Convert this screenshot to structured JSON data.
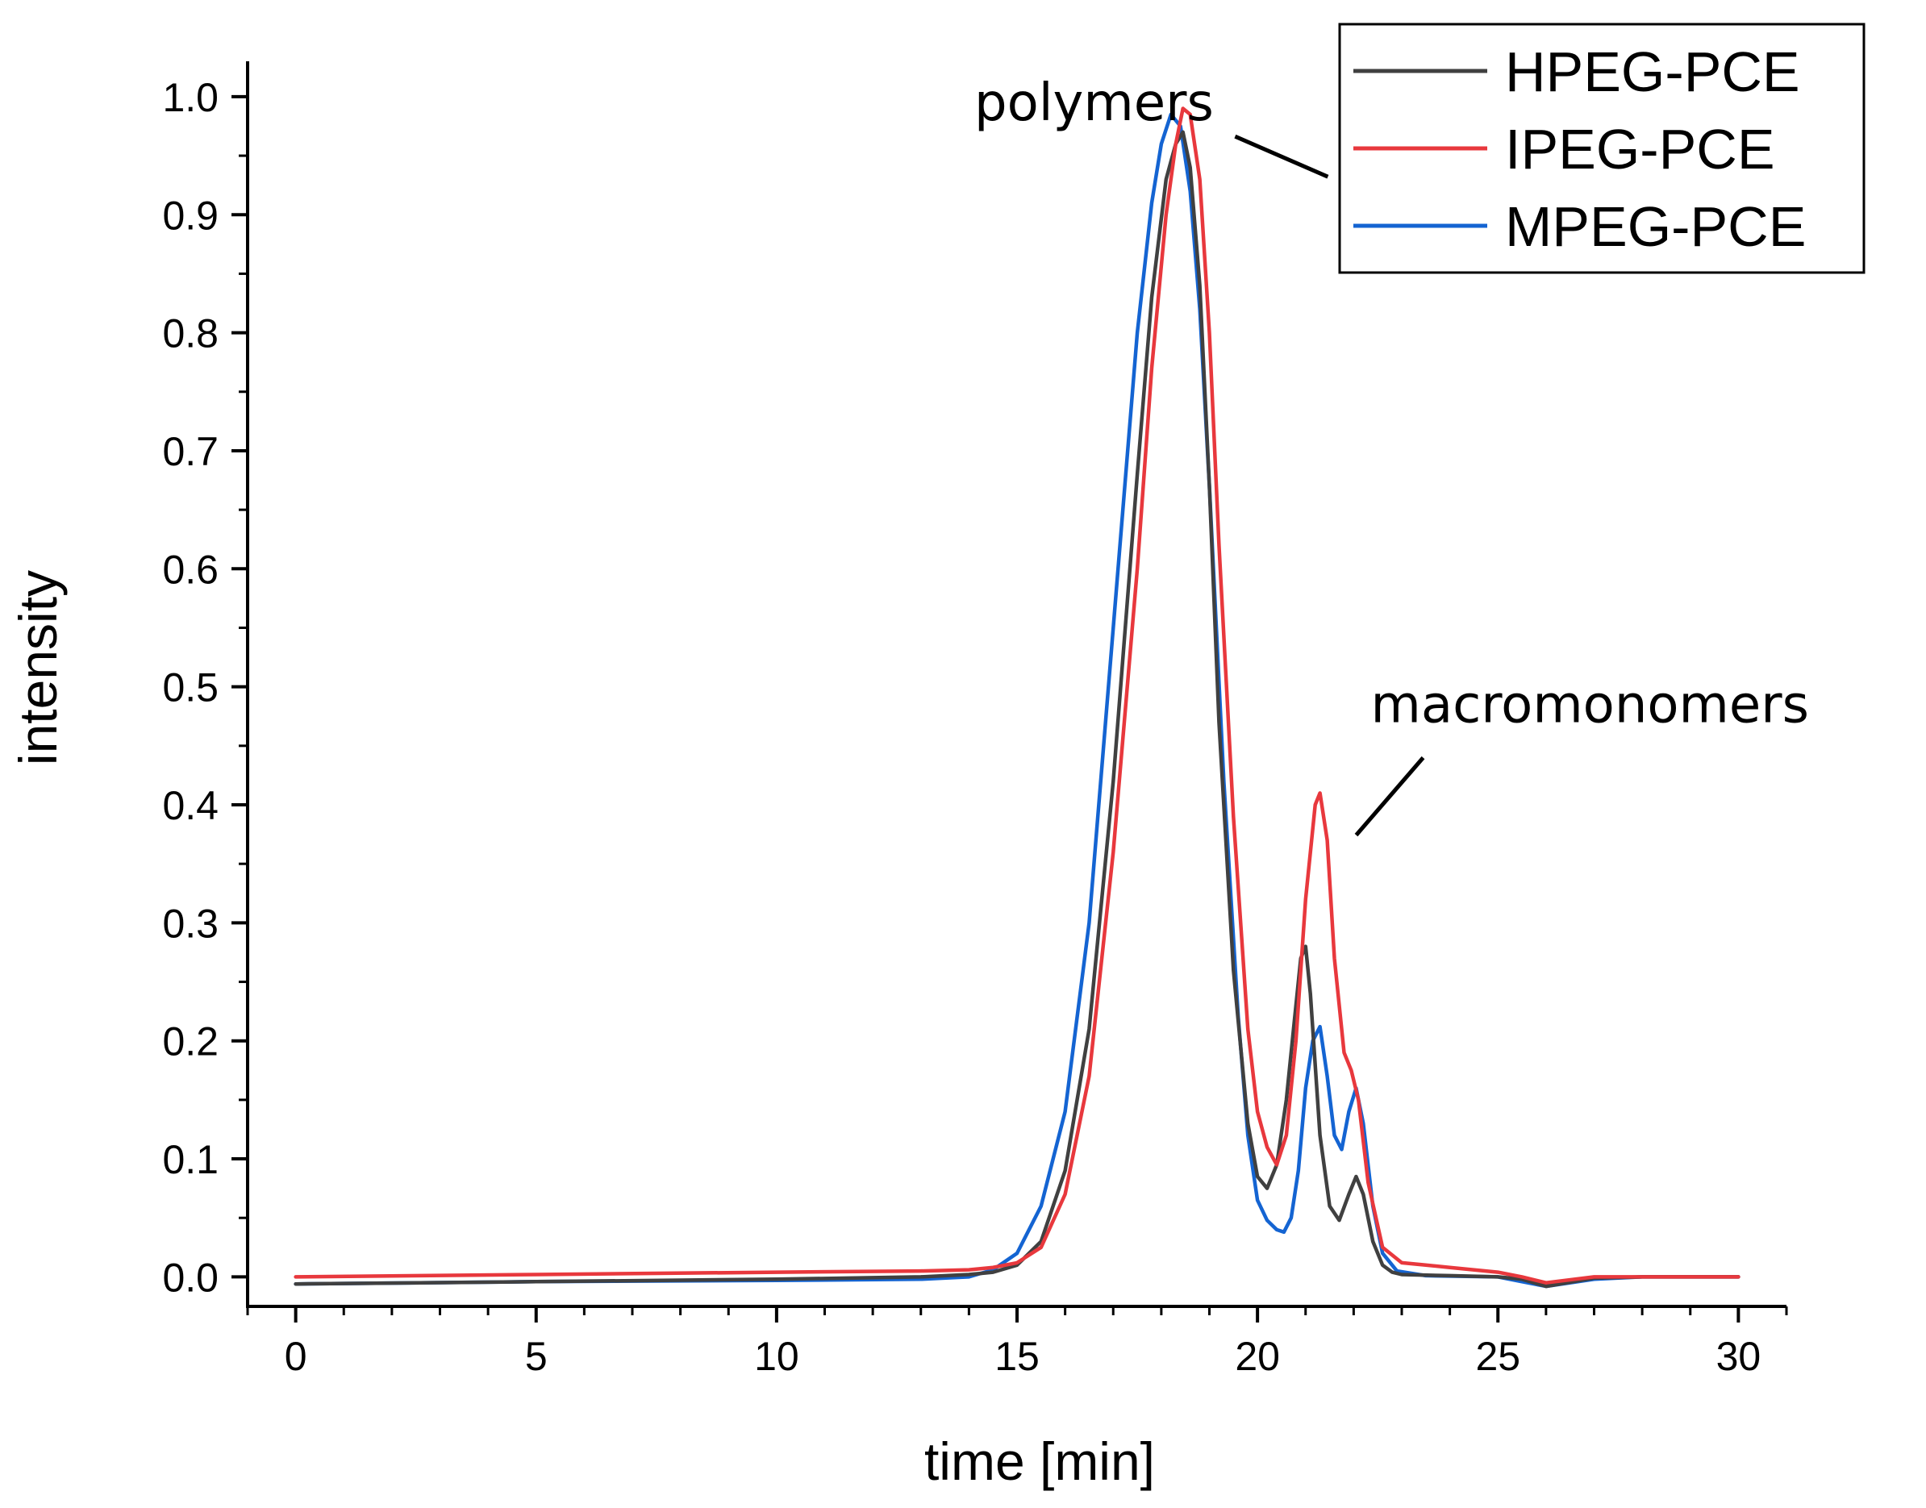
{
  "chart_data": {
    "type": "line",
    "title": "",
    "xlabel": "time [min]",
    "ylabel": "intensity",
    "xlim": [
      -1,
      31
    ],
    "ylim": [
      -0.025,
      1.03
    ],
    "xticks": [
      0,
      5,
      10,
      15,
      20,
      25,
      30
    ],
    "xtick_labels": [
      "0",
      "5",
      "10",
      "15",
      "20",
      "25",
      "30"
    ],
    "yticks": [
      0.0,
      0.1,
      0.2,
      0.3,
      0.4,
      0.5,
      0.6,
      0.7,
      0.8,
      0.9,
      1.0
    ],
    "ytick_labels": [
      "0.0",
      "0.1",
      "0.2",
      "0.3",
      "0.4",
      "0.5",
      "0.6",
      "0.7",
      "0.8",
      "0.9",
      "1.0"
    ],
    "grid": false,
    "legend_position": "top-right",
    "annotations": [
      {
        "text": "polymers",
        "x": 16.6,
        "y": 0.98
      },
      {
        "text": "macromonomers",
        "x": 21.6,
        "y": 0.47
      }
    ],
    "series": [
      {
        "name": "HPEG-PCE",
        "color": "#404040",
        "x": [
          0,
          5,
          10,
          13,
          14,
          14.5,
          15,
          15.5,
          16,
          16.5,
          17,
          17.5,
          17.8,
          18.1,
          18.3,
          18.45,
          18.6,
          18.8,
          19,
          19.2,
          19.5,
          19.8,
          20,
          20.2,
          20.4,
          20.6,
          20.8,
          20.9,
          21.0,
          21.1,
          21.3,
          21.5,
          21.7,
          21.9,
          22.05,
          22.2,
          22.4,
          22.6,
          22.8,
          23,
          24,
          25,
          25.5,
          26,
          27,
          28,
          30
        ],
        "y": [
          -0.006,
          -0.004,
          -0.002,
          0.0,
          0.002,
          0.004,
          0.01,
          0.03,
          0.09,
          0.21,
          0.42,
          0.68,
          0.83,
          0.93,
          0.96,
          0.97,
          0.94,
          0.84,
          0.67,
          0.47,
          0.26,
          0.13,
          0.085,
          0.075,
          0.095,
          0.15,
          0.23,
          0.27,
          0.28,
          0.24,
          0.12,
          0.06,
          0.048,
          0.07,
          0.085,
          0.07,
          0.03,
          0.01,
          0.004,
          0.002,
          0.001,
          0.0,
          -0.002,
          -0.008,
          -0.001,
          0.0,
          0.0
        ]
      },
      {
        "name": "IPEG-PCE",
        "color": "#e8383d",
        "x": [
          0,
          5,
          10,
          13,
          14,
          14.5,
          15,
          15.5,
          16,
          16.5,
          17,
          17.5,
          17.8,
          18.1,
          18.3,
          18.45,
          18.6,
          18.8,
          19,
          19.2,
          19.5,
          19.8,
          20,
          20.2,
          20.4,
          20.6,
          20.8,
          21.0,
          21.2,
          21.3,
          21.45,
          21.6,
          21.8,
          21.95,
          22.1,
          22.3,
          22.6,
          23,
          23.5,
          24,
          25,
          25.5,
          26,
          27,
          28,
          30
        ],
        "y": [
          0.0,
          0.002,
          0.004,
          0.005,
          0.006,
          0.008,
          0.012,
          0.025,
          0.07,
          0.17,
          0.36,
          0.6,
          0.77,
          0.9,
          0.96,
          0.99,
          0.985,
          0.93,
          0.8,
          0.62,
          0.39,
          0.21,
          0.14,
          0.11,
          0.095,
          0.12,
          0.2,
          0.32,
          0.4,
          0.41,
          0.37,
          0.27,
          0.19,
          0.175,
          0.15,
          0.08,
          0.025,
          0.012,
          0.01,
          0.008,
          0.004,
          0.0,
          -0.005,
          0.0,
          0.0,
          0.0
        ]
      },
      {
        "name": "MPEG-PCE",
        "color": "#1464d2",
        "x": [
          0,
          5,
          10,
          13,
          14,
          14.5,
          15,
          15.5,
          16,
          16.5,
          17,
          17.5,
          17.8,
          18.0,
          18.2,
          18.4,
          18.6,
          18.8,
          19,
          19.3,
          19.6,
          19.8,
          20,
          20.2,
          20.4,
          20.55,
          20.7,
          20.85,
          21.0,
          21.15,
          21.3,
          21.45,
          21.6,
          21.75,
          21.9,
          22.05,
          22.2,
          22.4,
          22.6,
          22.9,
          23.5,
          25,
          25.5,
          26,
          27,
          28,
          30
        ],
        "y": [
          -0.006,
          -0.004,
          -0.003,
          -0.002,
          0.0,
          0.006,
          0.02,
          0.06,
          0.14,
          0.3,
          0.55,
          0.8,
          0.91,
          0.96,
          0.985,
          0.975,
          0.92,
          0.82,
          0.67,
          0.42,
          0.22,
          0.12,
          0.065,
          0.048,
          0.04,
          0.038,
          0.05,
          0.09,
          0.16,
          0.2,
          0.212,
          0.17,
          0.12,
          0.108,
          0.14,
          0.16,
          0.13,
          0.06,
          0.02,
          0.005,
          0.001,
          0.0,
          -0.004,
          -0.008,
          -0.002,
          0.0,
          0.0
        ]
      }
    ]
  }
}
